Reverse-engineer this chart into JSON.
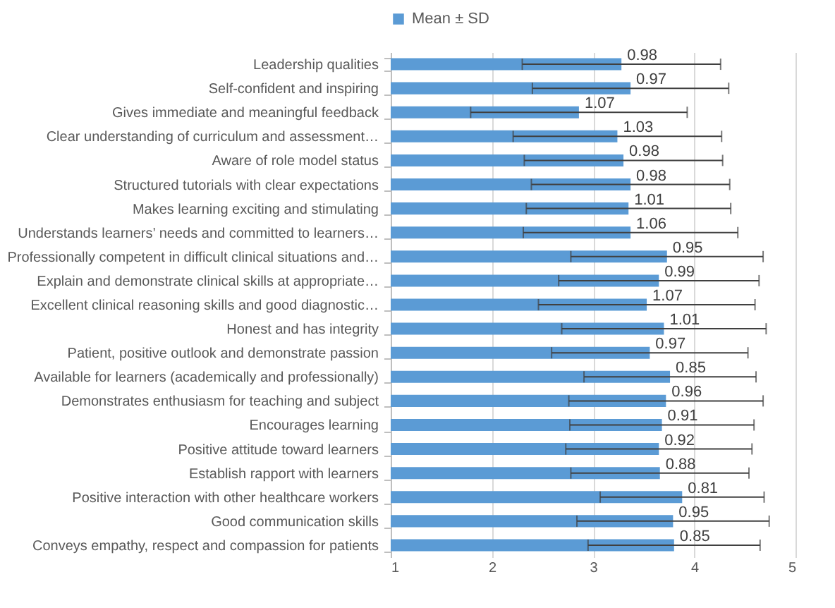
{
  "chart_data": {
    "type": "bar",
    "orientation": "horizontal",
    "categories": [
      "Leadership qualities",
      "Self-confident and inspiring",
      "Gives immediate and meaningful feedback",
      "Clear understanding of curriculum and assessment…",
      "Aware of role model status",
      "Structured tutorials with clear expectations",
      "Makes learning exciting and stimulating",
      "Understands learners’ needs and committed to learners…",
      "Professionally competent in difficult clinical situations and…",
      "Explain and demonstrate clinical skills at appropriate…",
      "Excellent clinical reasoning skills and good diagnostic…",
      "Honest and has integrity",
      "Patient, positive outlook and demonstrate passion",
      "Available for learners (academically and professionally)",
      "Demonstrates enthusiasm for teaching and subject",
      "Encourages learning",
      "Positive attitude toward learners",
      "Establish rapport with learners",
      "Positive interaction with other healthcare workers",
      "Good communication skills",
      "Conveys empathy, respect and compassion for patients"
    ],
    "series": [
      {
        "name": "Mean ± SD",
        "color": "#5b9bd5",
        "values": [
          3.28,
          3.37,
          2.86,
          3.24,
          3.3,
          3.37,
          3.35,
          3.37,
          3.73,
          3.65,
          3.53,
          3.7,
          3.56,
          3.76,
          3.72,
          3.68,
          3.65,
          3.66,
          3.88,
          3.79,
          3.8
        ],
        "errors": [
          0.98,
          0.97,
          1.07,
          1.03,
          0.98,
          0.98,
          1.01,
          1.06,
          0.95,
          0.99,
          1.07,
          1.01,
          0.97,
          0.85,
          0.96,
          0.91,
          0.92,
          0.88,
          0.81,
          0.95,
          0.85
        ]
      }
    ],
    "annotations": [
      {
        "text": "0.98",
        "x": 3.28,
        "y": "Leadership qualities"
      },
      {
        "text": "0.97",
        "x": 3.37,
        "y": "Self-confident and inspiring"
      },
      {
        "text": "1.07",
        "x": 2.86,
        "y": "Gives immediate and meaningful feedback"
      },
      {
        "text": "1.03",
        "x": 3.24,
        "y": "Clear understanding of curriculum and assessment…"
      },
      {
        "text": "0.98",
        "x": 3.3,
        "y": "Aware of role model status"
      },
      {
        "text": "0.98",
        "x": 3.37,
        "y": "Structured tutorials with clear expectations"
      },
      {
        "text": "1.01",
        "x": 3.35,
        "y": "Makes learning exciting and stimulating"
      },
      {
        "text": "1.06",
        "x": 3.37,
        "y": "Understands learners’ needs and committed to learners…"
      },
      {
        "text": "0.95",
        "x": 3.73,
        "y": "Professionally competent in difficult clinical situations and…"
      },
      {
        "text": "0.99",
        "x": 3.65,
        "y": "Explain and demonstrate clinical skills at appropriate…"
      },
      {
        "text": "1.07",
        "x": 3.53,
        "y": "Excellent clinical reasoning skills and good diagnostic…"
      },
      {
        "text": "1.01",
        "x": 3.7,
        "y": "Honest and has integrity"
      },
      {
        "text": "0.97",
        "x": 3.56,
        "y": "Patient, positive outlook and demonstrate passion"
      },
      {
        "text": "0.85",
        "x": 3.76,
        "y": "Available for learners (academically and professionally)"
      },
      {
        "text": "0.96",
        "x": 3.72,
        "y": "Demonstrates enthusiasm for teaching and subject"
      },
      {
        "text": "0.91",
        "x": 3.68,
        "y": "Encourages learning"
      },
      {
        "text": "0.92",
        "x": 3.65,
        "y": "Positive attitude toward learners"
      },
      {
        "text": "0.88",
        "x": 3.66,
        "y": "Establish rapport with learners"
      },
      {
        "text": "0.81",
        "x": 3.88,
        "y": "Positive interaction with other healthcare workers"
      },
      {
        "text": "0.95",
        "x": 3.79,
        "y": "Good communication skills"
      },
      {
        "text": "0.85",
        "x": 3.8,
        "y": "Conveys empathy, respect and compassion for patients"
      }
    ],
    "xlim": [
      1,
      5
    ],
    "xticks": [
      1,
      2,
      3,
      4,
      5
    ],
    "grid": "x",
    "legend": "top"
  }
}
